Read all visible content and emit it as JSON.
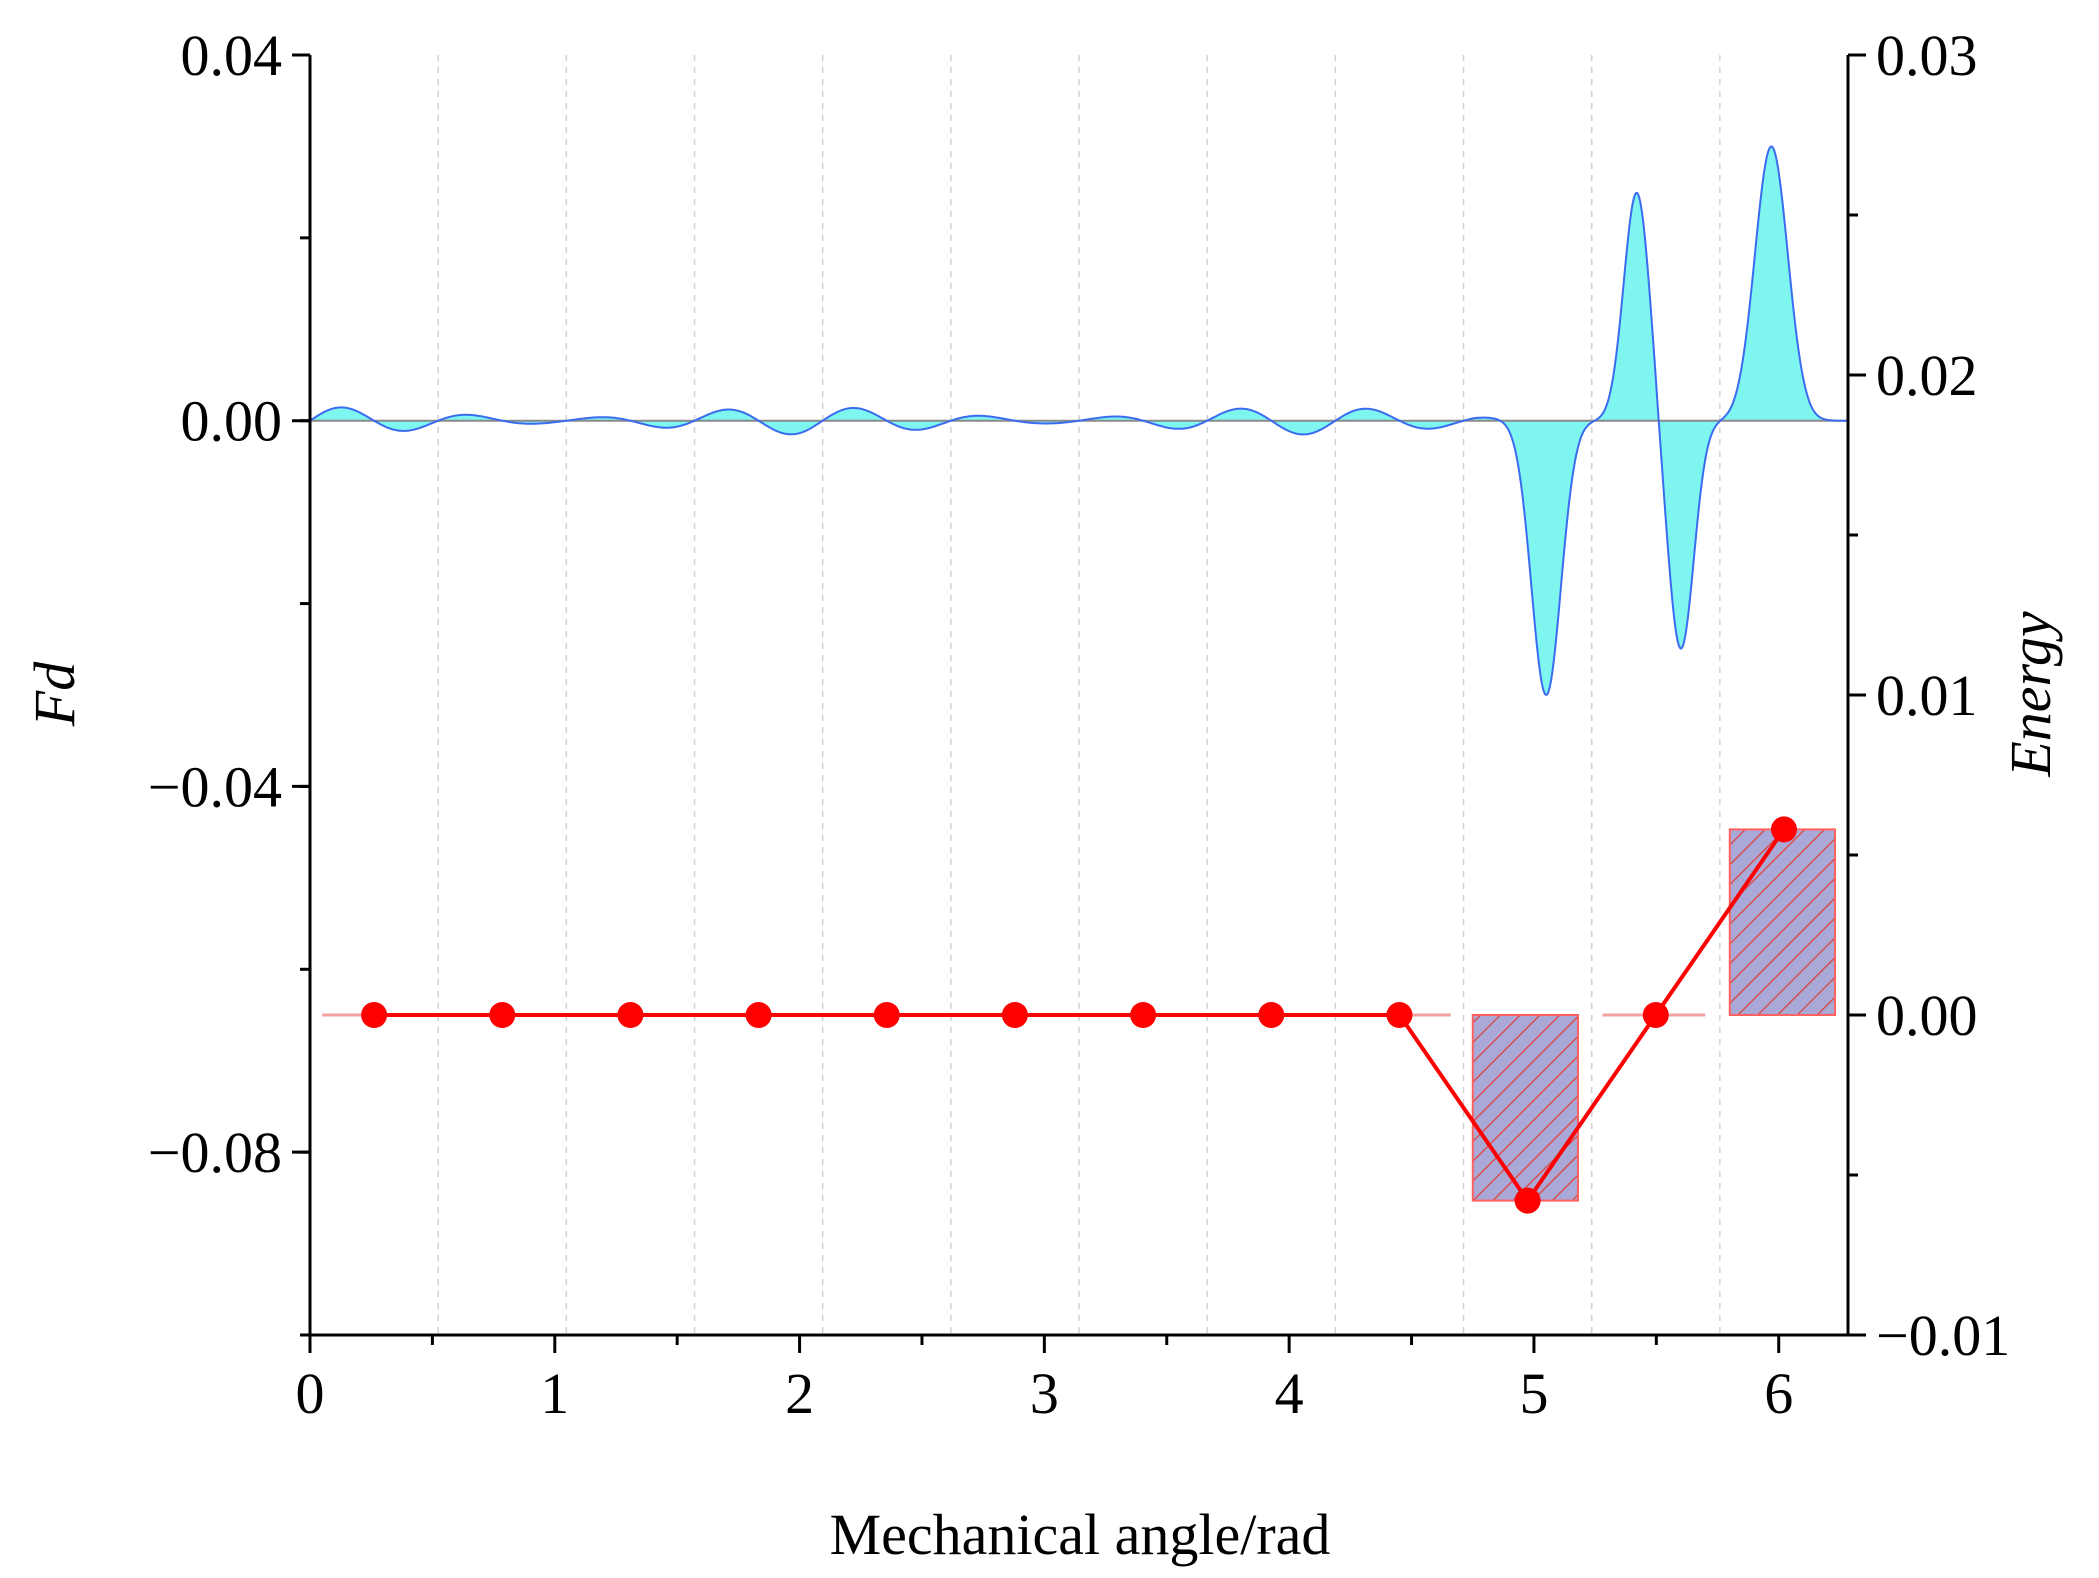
{
  "chart_data": {
    "type": "line",
    "xlabel": "Mechanical angle/rad",
    "ylabel_left": "Fd",
    "ylabel_right": "Energy",
    "xlim": [
      0,
      6.283
    ],
    "ylim_left": [
      -0.1,
      0.04
    ],
    "ylim_right": [
      -0.01,
      0.03
    ],
    "x_ticks": [
      "0",
      "1",
      "2",
      "3",
      "4",
      "5",
      "6"
    ],
    "y_left_ticks": [
      "0.04",
      "0.00",
      "−0.04",
      "−0.08"
    ],
    "y_left_tick_values": [
      0.04,
      0.0,
      -0.04,
      -0.08
    ],
    "y_right_ticks": [
      "0.03",
      "0.02",
      "0.01",
      "0.00",
      "−0.01"
    ],
    "y_right_tick_values": [
      0.03,
      0.02,
      0.01,
      0.0,
      -0.01
    ],
    "grid": "vertical dashed at every 0.5236 rad",
    "grid_step": 0.5236,
    "fd_signal": {
      "name": "Fd",
      "axis": "left",
      "fill_color": "#7ff5f0",
      "line_color": "#3b6cf0",
      "small_ripple_amplitude": 0.0015,
      "pulses": [
        {
          "center": 5.05,
          "height": -0.03,
          "width": 0.085
        },
        {
          "center": 5.42,
          "height": 0.025,
          "width": 0.075
        },
        {
          "center": 5.6,
          "height": -0.025,
          "width": 0.075
        },
        {
          "center": 5.97,
          "height": 0.03,
          "width": 0.095
        }
      ]
    },
    "energy_series": {
      "name": "Energy",
      "axis": "right",
      "color": "#ff0000",
      "x": [
        0.2618,
        0.7854,
        1.309,
        1.8326,
        2.3562,
        2.8798,
        3.4034,
        3.927,
        4.4506,
        4.9742,
        5.4978,
        6.0214
      ],
      "values": [
        0.0,
        0.0,
        0.0,
        0.0,
        0.0,
        0.0,
        0.0,
        0.0,
        0.0,
        -0.0058,
        0.0,
        0.0058
      ]
    },
    "energy_bars": {
      "name": "Energy bins",
      "axis": "right",
      "fill_color": "#a9a8d6",
      "hatch_color": "#e0403a",
      "edge_color": "#ff6060",
      "bins": [
        {
          "x0": 0.05,
          "x1": 0.4,
          "value": 0.0
        },
        {
          "x0": 0.57,
          "x1": 1.0,
          "value": 0.0
        },
        {
          "x0": 1.1,
          "x1": 1.5,
          "value": 0.0
        },
        {
          "x0": 1.62,
          "x1": 2.05,
          "value": 0.0
        },
        {
          "x0": 2.15,
          "x1": 2.58,
          "value": 0.0
        },
        {
          "x0": 2.67,
          "x1": 3.1,
          "value": 0.0
        },
        {
          "x0": 3.19,
          "x1": 3.62,
          "value": 0.0
        },
        {
          "x0": 3.72,
          "x1": 4.14,
          "value": 0.0
        },
        {
          "x0": 4.24,
          "x1": 4.66,
          "value": 0.0
        },
        {
          "x0": 4.75,
          "x1": 5.18,
          "value": -0.0058
        },
        {
          "x0": 5.28,
          "x1": 5.7,
          "value": 0.0
        },
        {
          "x0": 5.8,
          "x1": 6.23,
          "value": 0.0058
        }
      ]
    }
  }
}
